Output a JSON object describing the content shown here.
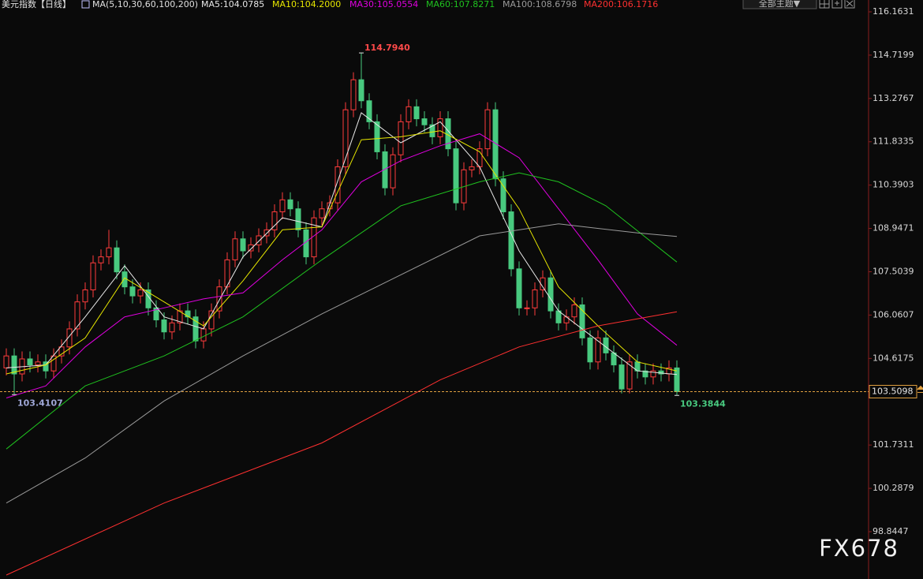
{
  "chart_data": {
    "type": "candlestick",
    "title": "美元指数【日线】",
    "indicator": "MA(5,10,30,60,100,200)",
    "up_color": "#ff3c3c",
    "down_color": "#48c97f",
    "open": [
      104.3,
      104.7,
      104.1,
      104.6,
      104.4,
      104.5,
      104.2,
      104.7,
      105.0,
      105.6,
      106.5,
      106.9,
      107.8,
      108.0,
      108.3,
      107.5,
      107.0,
      106.7,
      106.9,
      106.3,
      105.9,
      105.5,
      105.8,
      106.2,
      106.0,
      105.2,
      105.6,
      106.2,
      107.0,
      107.9,
      108.6,
      108.2,
      108.4,
      108.7,
      108.9,
      109.5,
      109.9,
      109.6,
      108.9,
      108.0,
      109.3,
      109.6,
      109.8,
      111.0,
      112.9,
      113.9,
      113.2,
      112.5,
      111.5,
      110.3,
      111.4,
      112.5,
      113.0,
      112.6,
      112.4,
      112.0,
      112.6,
      111.6,
      109.8,
      110.9,
      111.0,
      111.6,
      112.9,
      110.6,
      109.5,
      107.6,
      106.3,
      106.3,
      106.9,
      107.3,
      106.2,
      105.8,
      106.0,
      106.4,
      105.3,
      104.5,
      105.3,
      104.8,
      104.4,
      103.6,
      104.5,
      104.2,
      104.0,
      104.2,
      104.1,
      104.3
    ],
    "high": [
      104.95,
      104.95,
      104.85,
      104.85,
      104.75,
      104.75,
      104.95,
      105.25,
      105.85,
      106.75,
      107.15,
      108.05,
      108.25,
      108.9,
      108.55,
      107.75,
      107.25,
      107.15,
      107.15,
      106.55,
      106.15,
      106.05,
      106.45,
      106.45,
      106.25,
      105.85,
      106.45,
      107.25,
      108.15,
      108.85,
      108.85,
      108.65,
      108.95,
      109.15,
      109.75,
      110.15,
      110.15,
      109.85,
      109.15,
      109.55,
      109.85,
      110.05,
      111.25,
      113.15,
      114.15,
      114.794,
      113.45,
      112.75,
      111.75,
      111.65,
      112.75,
      113.25,
      113.25,
      112.85,
      112.65,
      112.85,
      112.85,
      111.85,
      111.15,
      111.25,
      111.85,
      113.15,
      113.15,
      110.85,
      109.75,
      107.85,
      106.55,
      107.15,
      107.55,
      107.55,
      106.45,
      106.25,
      106.65,
      106.65,
      105.55,
      105.55,
      105.55,
      105.05,
      104.65,
      104.75,
      104.75,
      104.45,
      104.45,
      104.45,
      104.55,
      104.55
    ],
    "low": [
      104.05,
      103.4107,
      103.85,
      104.15,
      104.15,
      103.95,
      103.95,
      104.45,
      104.75,
      105.35,
      106.25,
      106.65,
      107.55,
      107.75,
      107.25,
      106.75,
      106.45,
      106.45,
      106.05,
      105.65,
      105.25,
      105.25,
      105.55,
      105.75,
      104.95,
      104.95,
      105.35,
      105.95,
      106.75,
      107.65,
      107.95,
      107.95,
      108.15,
      108.45,
      108.65,
      109.25,
      109.35,
      108.65,
      107.75,
      107.75,
      109.05,
      109.35,
      109.55,
      110.75,
      112.65,
      112.95,
      112.25,
      111.25,
      110.05,
      110.05,
      111.15,
      112.25,
      112.35,
      112.15,
      111.75,
      111.75,
      111.35,
      109.55,
      109.55,
      110.65,
      110.75,
      111.35,
      110.35,
      109.25,
      107.35,
      106.05,
      106.05,
      106.05,
      106.65,
      105.95,
      105.55,
      105.55,
      105.75,
      105.05,
      104.25,
      104.25,
      104.55,
      104.15,
      103.45,
      103.45,
      103.95,
      103.75,
      103.75,
      103.85,
      103.85,
      103.3844
    ],
    "close": [
      104.7,
      104.1,
      104.6,
      104.4,
      104.5,
      104.2,
      104.7,
      105.0,
      105.6,
      106.5,
      106.9,
      107.8,
      108.0,
      108.3,
      107.5,
      107.0,
      106.7,
      106.9,
      106.3,
      105.9,
      105.5,
      105.8,
      106.2,
      106.0,
      105.2,
      105.6,
      106.2,
      107.0,
      107.9,
      108.6,
      108.2,
      108.4,
      108.7,
      108.9,
      109.5,
      109.9,
      109.6,
      108.9,
      108.0,
      109.3,
      109.6,
      109.8,
      111.0,
      112.9,
      113.9,
      113.2,
      112.5,
      111.5,
      110.3,
      111.4,
      112.5,
      113.0,
      112.6,
      112.4,
      112.0,
      112.6,
      111.6,
      109.8,
      110.9,
      111.0,
      111.6,
      112.9,
      110.6,
      109.5,
      107.6,
      106.3,
      106.3,
      106.9,
      107.3,
      106.2,
      105.8,
      106.0,
      106.4,
      105.3,
      104.5,
      105.3,
      104.8,
      104.4,
      103.6,
      104.5,
      104.2,
      104.0,
      104.2,
      104.1,
      104.3,
      103.5098
    ],
    "series": [
      {
        "name": "MA5:104.0785",
        "color": "#e8e8e8",
        "x": [
          0,
          5,
          10,
          15,
          20,
          25,
          30,
          35,
          40,
          45,
          50,
          55,
          60,
          65,
          70,
          75,
          80,
          85
        ],
        "values": [
          104.3,
          104.4,
          106.0,
          107.7,
          106.0,
          105.6,
          108.0,
          109.3,
          109.0,
          112.8,
          111.8,
          112.5,
          111.0,
          108.2,
          106.2,
          105.2,
          104.2,
          104.0785
        ]
      },
      {
        "name": "MA10:104.2000",
        "color": "#e6e600",
        "x": [
          0,
          5,
          10,
          15,
          20,
          25,
          30,
          35,
          40,
          45,
          50,
          55,
          60,
          65,
          70,
          75,
          80,
          85
        ],
        "values": [
          104.1,
          104.4,
          105.3,
          107.3,
          106.5,
          105.7,
          107.2,
          108.9,
          109.0,
          111.9,
          112.0,
          112.2,
          111.5,
          109.6,
          107.0,
          105.7,
          104.5,
          104.2
        ]
      },
      {
        "name": "MA30:105.0554",
        "color": "#e000e0",
        "x": [
          0,
          5,
          10,
          15,
          20,
          25,
          30,
          35,
          40,
          45,
          50,
          55,
          60,
          65,
          70,
          75,
          80,
          85
        ],
        "values": [
          103.3,
          103.7,
          105.0,
          106.0,
          106.3,
          106.6,
          106.8,
          107.9,
          108.9,
          110.5,
          111.2,
          111.7,
          112.1,
          111.3,
          109.6,
          107.9,
          106.1,
          105.0554
        ]
      },
      {
        "name": "MA60:107.8271",
        "color": "#1fc21f",
        "x": [
          0,
          10,
          20,
          30,
          40,
          50,
          60,
          65,
          70,
          76,
          85
        ],
        "values": [
          101.6,
          103.7,
          104.7,
          106.0,
          107.9,
          109.7,
          110.5,
          110.8,
          110.5,
          109.7,
          107.8271
        ]
      },
      {
        "name": "MA100:108.6798",
        "color": "#9a9a9a",
        "x": [
          0,
          10,
          20,
          30,
          40,
          50,
          60,
          70,
          80,
          85
        ],
        "values": [
          99.8,
          101.3,
          103.2,
          104.7,
          106.1,
          107.4,
          108.7,
          109.1,
          108.8,
          108.6798
        ]
      },
      {
        "name": "MA200:106.1716",
        "color": "#ff3030",
        "x": [
          0,
          20,
          40,
          55,
          65,
          75,
          85
        ],
        "values": [
          97.4,
          99.8,
          101.8,
          103.9,
          105.0,
          105.7,
          106.1716
        ]
      }
    ],
    "ylim": [
      97.268,
      116.557
    ],
    "yticks": [
      116.1631,
      114.7199,
      113.2767,
      111.8335,
      110.3903,
      108.9471,
      107.5039,
      106.0607,
      104.6175,
      101.7311,
      100.2879,
      98.8447
    ],
    "last_price": 103.5098,
    "extreme_labels": [
      {
        "value": 114.794,
        "label": "114.7940"
      },
      103.4107,
      103.3844
    ]
  },
  "toolbar": {
    "theme_button": "全部主题▼"
  },
  "watermark": "FX678"
}
